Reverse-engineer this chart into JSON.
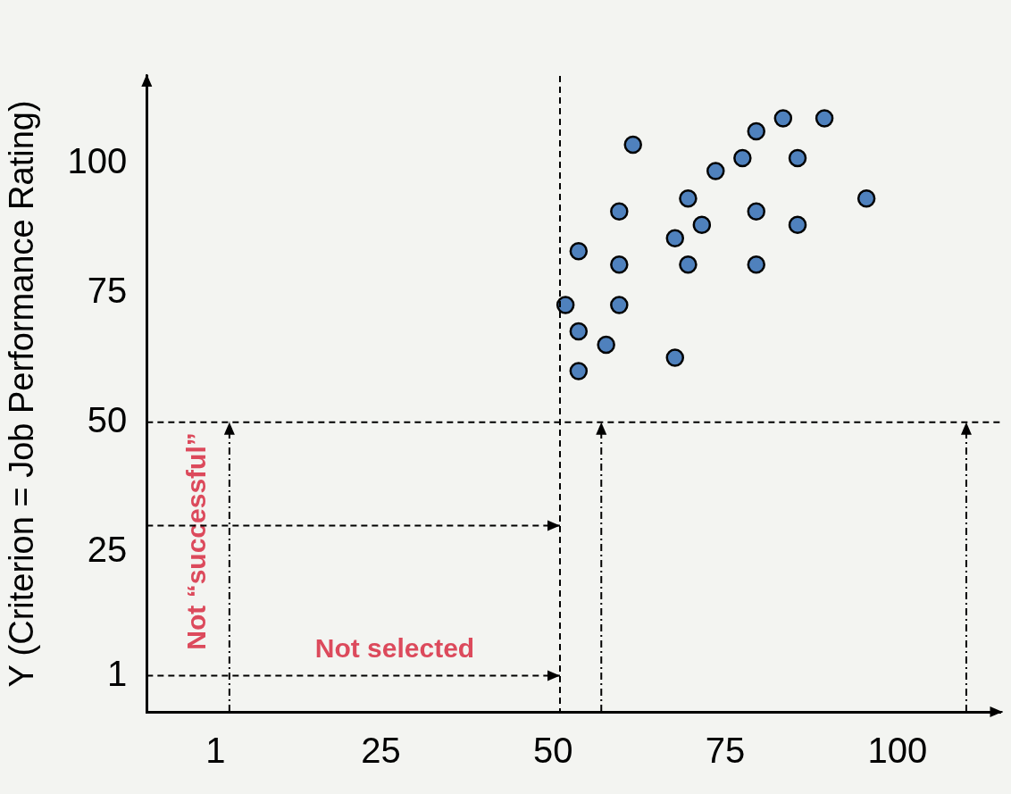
{
  "chart_data": {
    "type": "scatter",
    "ylabel": "Y (Criterion = Job Performance Rating)",
    "x": [
      51.8,
      53.7,
      53.7,
      53.7,
      57.7,
      59.6,
      59.6,
      59.6,
      61.6,
      67.7,
      67.7,
      69.6,
      69.6,
      71.6,
      73.6,
      77.5,
      79.5,
      79.5,
      79.5,
      83.4,
      85.5,
      85.5,
      89.4,
      95.5
    ],
    "series": [
      {
        "color": "#4f81bd",
        "values": [
          72.7,
          83.1,
          67.6,
          59.9,
          65.0,
          90.8,
          80.5,
          72.7,
          103.7,
          85.6,
          62.5,
          93.3,
          80.5,
          88.2,
          98.6,
          101.1,
          106.3,
          90.8,
          80.5,
          108.8,
          101.1,
          88.2,
          108.8,
          93.3
        ]
      }
    ],
    "xlim": [
      -9,
      115
    ],
    "ylim": [
      -6,
      117
    ],
    "xticks": [
      1,
      25,
      50,
      75,
      100
    ],
    "yticks": [
      1,
      25,
      50,
      75,
      100
    ],
    "ref_lines": [
      {
        "axis": "x",
        "value": 51,
        "line_style": "dashed",
        "color": "#000000"
      },
      {
        "axis": "y",
        "value": 50,
        "line_style": "dashed",
        "color": "#000000"
      }
    ],
    "annotations": [
      "Not selected",
      "Not “successful”"
    ],
    "marker": "circle",
    "grid": false,
    "legend": false
  }
}
